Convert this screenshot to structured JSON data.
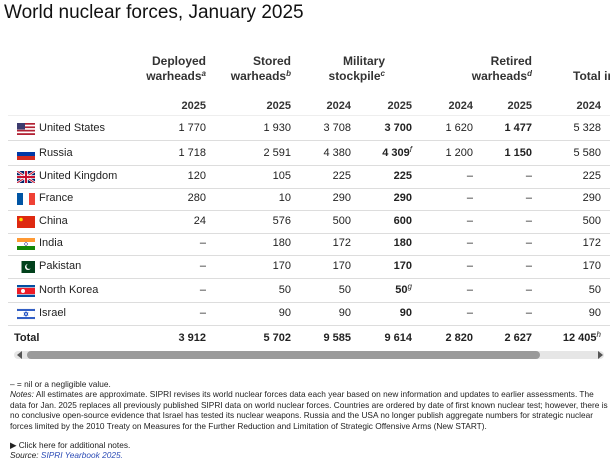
{
  "title": "World nuclear forces, January 2025",
  "table": {
    "headers": [
      {
        "lines": [
          "Deployed",
          "warheads"
        ],
        "note": "a"
      },
      {
        "lines": [
          "Stored",
          "warheads"
        ],
        "note": "b"
      },
      {
        "lines": [
          "Military",
          "stockpile"
        ],
        "note": "c"
      },
      {
        "lines": [
          "Retired",
          "warheads"
        ],
        "note": "d"
      },
      {
        "lines": [
          "Total in"
        ]
      }
    ],
    "years": [
      "2025",
      "2025",
      "2024",
      "2025",
      "2024",
      "2025",
      "2024"
    ],
    "rows": [
      {
        "country": "United States",
        "cells": [
          "1 770",
          "1 930",
          "3 708",
          "3 700",
          "1 620",
          "1 477",
          "5 328"
        ]
      },
      {
        "country": "Russia",
        "cells": [
          "1 718",
          "2 591",
          "4 380",
          {
            "text": "4 309",
            "note": "f"
          },
          "1 200",
          "1 150",
          "5 580"
        ]
      },
      {
        "country": "United Kingdom",
        "cells": [
          "120",
          "105",
          "225",
          "225",
          "–",
          "–",
          "225"
        ]
      },
      {
        "country": "France",
        "cells": [
          "280",
          "10",
          "290",
          "290",
          "–",
          "–",
          "290"
        ]
      },
      {
        "country": "China",
        "cells": [
          "24",
          "576",
          "500",
          "600",
          "–",
          "–",
          "500"
        ]
      },
      {
        "country": "India",
        "cells": [
          "–",
          "180",
          "172",
          "180",
          "–",
          "–",
          "172"
        ]
      },
      {
        "country": "Pakistan",
        "cells": [
          "–",
          "170",
          "170",
          "170",
          "–",
          "–",
          "170"
        ]
      },
      {
        "country": "North Korea",
        "cells": [
          "–",
          "50",
          "50",
          {
            "text": "50",
            "note": "g"
          },
          "–",
          "–",
          "50"
        ]
      },
      {
        "country": "Israel",
        "cells": [
          "–",
          "90",
          "90",
          "90",
          "–",
          "–",
          "90"
        ]
      }
    ],
    "total": {
      "label": "Total",
      "cells": [
        "3 912",
        "5 702",
        "9 585",
        "9 614",
        "2 820",
        "2 627",
        {
          "text": "12 405",
          "note": "h"
        }
      ]
    }
  },
  "footer": {
    "legend": "– = nil or a negligible value.",
    "notes": {
      "label": "Notes:",
      "text": "All estimates are approximate. SIPRI revises its world nuclear forces data each year based on new information and updates to earlier assessments. The data for Jan. 2025 replaces all previously published SIPRI data on world nuclear forces. Countries are ordered by date of first known nuclear test; however, there is no conclusive open-source evidence that Israel has tested its nuclear weapons. Russia and the USA no longer publish aggregate numbers for strategic nuclear forces limited by the 2010 Treaty on Measures for the Further Reduction and Limitation of Strategic Offensive Arms (New START)."
    },
    "more": "Click here for additional notes.",
    "source": {
      "label": "Source:",
      "text": "SIPRI Yearbook 2025."
    }
  }
}
